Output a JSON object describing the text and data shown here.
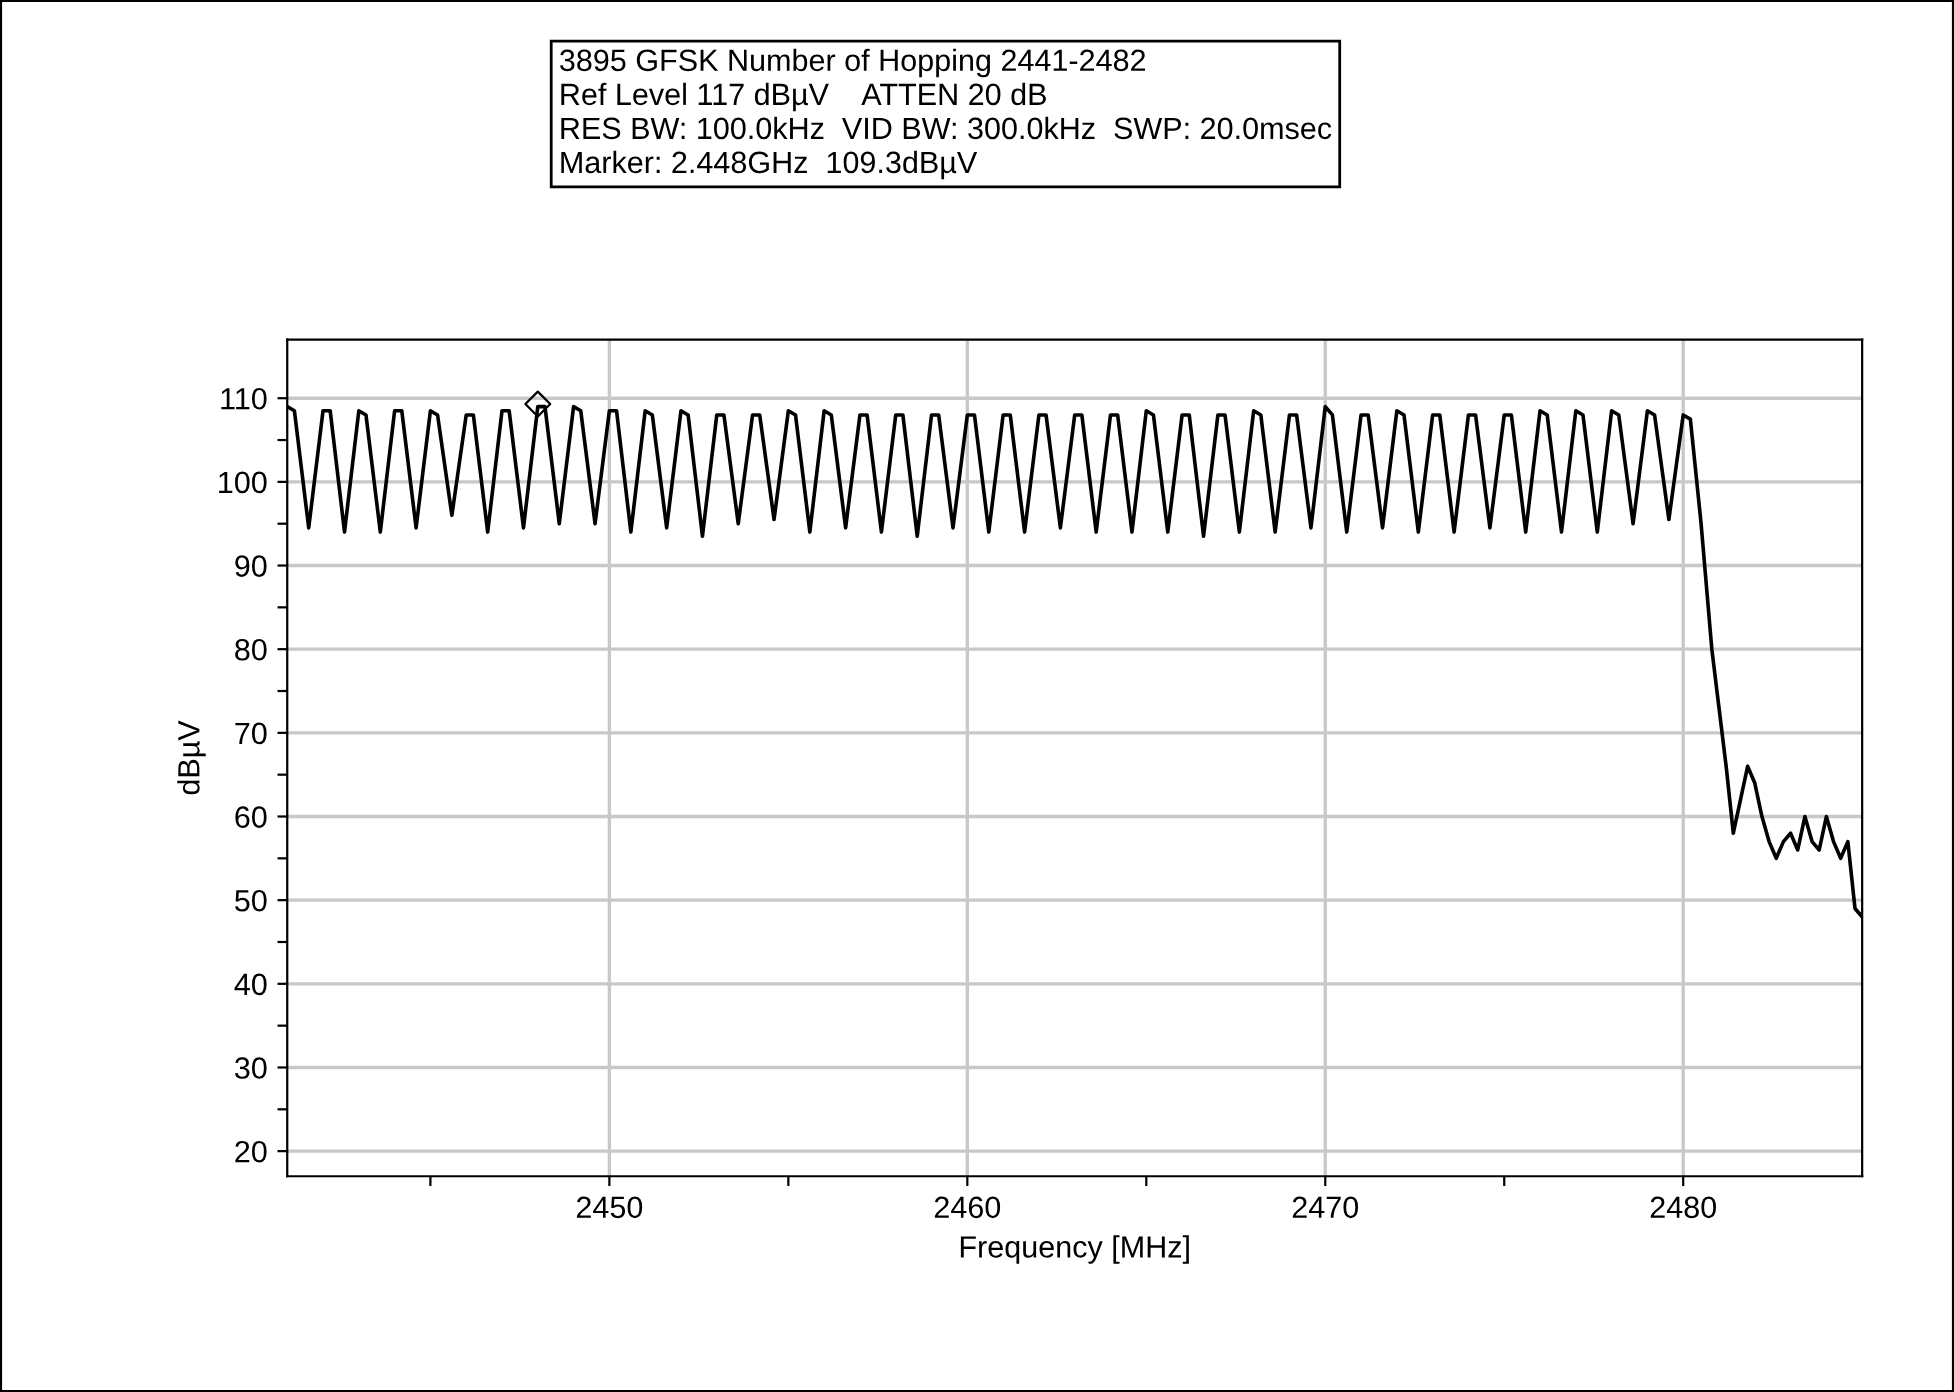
{
  "chart_data": {
    "type": "line",
    "xlabel": "Frequency [MHz]",
    "ylabel": "dBµV",
    "annotations": [
      "3895 GFSK Number of Hopping 2441-2482",
      "Ref Level 117 dBµV    ATTEN 20 dB",
      "RES BW: 100.0kHz  VID BW: 300.0kHz  SWP: 20.0msec",
      "Marker: 2.448GHz  109.3dBµV"
    ],
    "xlim": [
      2441,
      2485
    ],
    "ylim": [
      17,
      117
    ],
    "xticks": [
      {
        "value": 2445,
        "label": null
      },
      2450,
      {
        "value": 2455,
        "label": null
      },
      2460,
      {
        "value": 2465,
        "label": null
      },
      2470,
      {
        "value": 2475,
        "label": null
      },
      2480
    ],
    "yticks": [
      20,
      {
        "value": 25,
        "label": null
      },
      30,
      {
        "value": 35,
        "label": null
      },
      40,
      {
        "value": 45,
        "label": null
      },
      50,
      {
        "value": 55,
        "label": null
      },
      60,
      {
        "value": 65,
        "label": null
      },
      70,
      {
        "value": 75,
        "label": null
      },
      80,
      {
        "value": 85,
        "label": null
      },
      90,
      {
        "value": 95,
        "label": null
      },
      100,
      {
        "value": 105,
        "label": null
      },
      110
    ],
    "grid": true,
    "legend": false,
    "series": [
      {
        "color": "#000000",
        "line_style": "solid",
        "marker": "none",
        "x": [
          2441,
          2441.2,
          2441.6,
          2442,
          2442.2,
          2442.6,
          2443,
          2443.2,
          2443.6,
          2444,
          2444.2,
          2444.6,
          2445,
          2445.2,
          2445.6,
          2446,
          2446.2,
          2446.6,
          2447,
          2447.2,
          2447.6,
          2448,
          2448.2,
          2448.6,
          2449,
          2449.2,
          2449.6,
          2450,
          2450.2,
          2450.6,
          2451,
          2451.2,
          2451.6,
          2452,
          2452.2,
          2452.6,
          2453,
          2453.2,
          2453.6,
          2454,
          2454.2,
          2454.6,
          2455,
          2455.2,
          2455.6,
          2456,
          2456.2,
          2456.6,
          2457,
          2457.2,
          2457.6,
          2458,
          2458.2,
          2458.6,
          2459,
          2459.2,
          2459.6,
          2460,
          2460.2,
          2460.6,
          2461,
          2461.2,
          2461.6,
          2462,
          2462.2,
          2462.6,
          2463,
          2463.2,
          2463.6,
          2464,
          2464.2,
          2464.6,
          2465,
          2465.2,
          2465.6,
          2466,
          2466.2,
          2466.6,
          2467,
          2467.2,
          2467.6,
          2468,
          2468.2,
          2468.6,
          2469,
          2469.2,
          2469.6,
          2470,
          2470.2,
          2470.6,
          2471,
          2471.2,
          2471.6,
          2472,
          2472.2,
          2472.6,
          2473,
          2473.2,
          2473.6,
          2474,
          2474.2,
          2474.6,
          2475,
          2475.2,
          2475.6,
          2476,
          2476.2,
          2476.6,
          2477,
          2477.2,
          2477.6,
          2478,
          2478.2,
          2478.6,
          2479,
          2479.2,
          2479.6,
          2480,
          2480.2,
          2480.5,
          2480.8,
          2481,
          2481.2,
          2481.4,
          2481.6,
          2481.8,
          2482,
          2482.2,
          2482.4,
          2482.6,
          2482.8,
          2483,
          2483.2,
          2483.4,
          2483.6,
          2483.8,
          2484,
          2484.2,
          2484.4,
          2484.6,
          2484.8,
          2485
        ],
        "values": [
          109,
          108.5,
          94.5,
          108.5,
          108.5,
          94,
          108.5,
          108,
          94,
          108.5,
          108.5,
          94.5,
          108.5,
          108,
          96,
          108,
          108,
          94,
          108.5,
          108.5,
          94.5,
          109,
          109,
          95,
          109,
          108.5,
          95,
          108.5,
          108.5,
          94,
          108.5,
          108,
          94.5,
          108.5,
          108,
          93.5,
          108,
          108,
          95,
          108,
          108,
          95.5,
          108.5,
          108,
          94,
          108.5,
          108,
          94.5,
          108,
          108,
          94,
          108,
          108,
          93.5,
          108,
          108,
          94.5,
          108,
          108,
          94,
          108,
          108,
          94,
          108,
          108,
          94.5,
          108,
          108,
          94,
          108,
          108,
          94,
          108.5,
          108,
          94,
          108,
          108,
          93.5,
          108,
          108,
          94,
          108.5,
          108,
          94,
          108,
          108,
          94.5,
          109,
          108,
          94,
          108,
          108,
          94.5,
          108.5,
          108,
          94,
          108,
          108,
          94,
          108,
          108,
          94.5,
          108,
          108,
          94,
          108.5,
          108,
          94,
          108.5,
          108,
          94,
          108.5,
          108,
          95,
          108.5,
          108,
          95.5,
          108,
          107.5,
          95,
          80,
          73,
          66,
          58,
          62,
          66,
          64,
          60,
          57,
          55,
          57,
          58,
          56,
          60,
          57,
          56,
          60,
          57,
          55,
          57,
          49,
          48
        ]
      },
      {
        "type": "scatter",
        "color": "#000000",
        "marker": "diamond",
        "x": [
          2448
        ],
        "values": [
          109.3
        ]
      }
    ]
  }
}
